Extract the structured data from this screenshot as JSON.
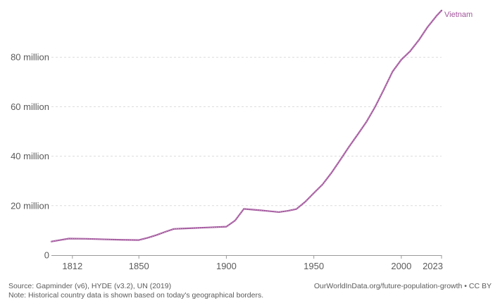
{
  "chart_data": {
    "type": "line",
    "title": "",
    "xlabel": "",
    "ylabel": "",
    "x_ticks": [
      1812,
      1850,
      1900,
      1950,
      2000,
      2023
    ],
    "y_ticks": [
      {
        "value": 0,
        "label": "0"
      },
      {
        "value": 20000000,
        "label": "20 million"
      },
      {
        "value": 40000000,
        "label": "40 million"
      },
      {
        "value": 60000000,
        "label": "60 million"
      },
      {
        "value": 80000000,
        "label": "80 million"
      }
    ],
    "xlim": [
      1800,
      2023
    ],
    "ylim": [
      0,
      100000000
    ],
    "grid": "horizontal dashed",
    "series": [
      {
        "name": "Vietnam",
        "color": "#a2559c",
        "points": [
          [
            1800,
            5500000
          ],
          [
            1810,
            6700000
          ],
          [
            1820,
            6600000
          ],
          [
            1830,
            6400000
          ],
          [
            1840,
            6200000
          ],
          [
            1850,
            6100000
          ],
          [
            1855,
            7000000
          ],
          [
            1860,
            8100000
          ],
          [
            1865,
            9400000
          ],
          [
            1870,
            10600000
          ],
          [
            1880,
            10900000
          ],
          [
            1890,
            11200000
          ],
          [
            1900,
            11500000
          ],
          [
            1905,
            14000000
          ],
          [
            1910,
            18700000
          ],
          [
            1920,
            18100000
          ],
          [
            1930,
            17400000
          ],
          [
            1935,
            17900000
          ],
          [
            1940,
            18600000
          ],
          [
            1945,
            21500000
          ],
          [
            1950,
            25100000
          ],
          [
            1955,
            28600000
          ],
          [
            1960,
            33200000
          ],
          [
            1965,
            38400000
          ],
          [
            1970,
            43700000
          ],
          [
            1975,
            48700000
          ],
          [
            1980,
            53800000
          ],
          [
            1985,
            59900000
          ],
          [
            1990,
            66900000
          ],
          [
            1995,
            74200000
          ],
          [
            2000,
            79000000
          ],
          [
            2005,
            82400000
          ],
          [
            2010,
            86900000
          ],
          [
            2015,
            92200000
          ],
          [
            2020,
            96600000
          ],
          [
            2023,
            98900000
          ]
        ]
      }
    ]
  },
  "footer": {
    "source": "Source: Gapminder (v6), HYDE (v3.2), UN (2019)",
    "note": "Note: Historical country data is shown based on today's geographical borders.",
    "credit": "OurWorldInData.org/future-population-growth • CC BY"
  }
}
